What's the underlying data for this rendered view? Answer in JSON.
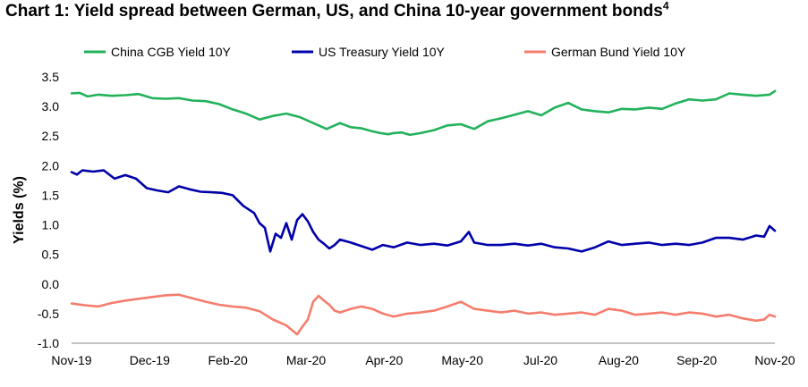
{
  "chart_data": {
    "type": "line",
    "title": "Chart 1: Yield spread between German, US, and China 10-year government bonds",
    "title_footnote": "4",
    "xlabel": "",
    "ylabel": "Yields (%)",
    "ylim": [
      -1.0,
      3.5
    ],
    "yticks": [
      "3.5",
      "3.0",
      "2.5",
      "2.0",
      "1.5",
      "1.0",
      "0.5",
      "0.0",
      "-0.5",
      "-1.0"
    ],
    "x_tick_labels": [
      "Nov-19",
      "Dec-19",
      "Feb-20",
      "Mar-20",
      "Apr-20",
      "May-20",
      "Jul-20",
      "Aug-20",
      "Sep-20",
      "Nov-20"
    ],
    "grid": false,
    "legend_position": "top",
    "series": [
      {
        "name": "China CGB Yield 10Y",
        "color": "#22b25a",
        "x": [
          0,
          3,
          6,
          10,
          15,
          20,
          25,
          30,
          35,
          40,
          45,
          50,
          55,
          60,
          65,
          70,
          75,
          80,
          85,
          90,
          95,
          100,
          104,
          108,
          112,
          115,
          118,
          120,
          123,
          126,
          130,
          135,
          140,
          145,
          150,
          155,
          160,
          165,
          170,
          175,
          180,
          185,
          190,
          195,
          200,
          205,
          210,
          215,
          220,
          225,
          230,
          235,
          240,
          245,
          250,
          255,
          260,
          262
        ],
        "values": [
          3.22,
          3.23,
          3.17,
          3.2,
          3.18,
          3.19,
          3.21,
          3.14,
          3.13,
          3.14,
          3.1,
          3.09,
          3.04,
          2.95,
          2.88,
          2.78,
          2.84,
          2.88,
          2.82,
          2.72,
          2.62,
          2.72,
          2.65,
          2.63,
          2.58,
          2.55,
          2.53,
          2.55,
          2.56,
          2.52,
          2.55,
          2.6,
          2.68,
          2.7,
          2.62,
          2.75,
          2.8,
          2.86,
          2.92,
          2.85,
          2.98,
          3.06,
          2.95,
          2.92,
          2.9,
          2.96,
          2.95,
          2.98,
          2.96,
          3.05,
          3.12,
          3.1,
          3.12,
          3.22,
          3.2,
          3.18,
          3.2,
          3.26
        ]
      },
      {
        "name": "US Treasury Yield 10Y",
        "color": "#0000aa",
        "x": [
          0,
          2,
          4,
          8,
          12,
          16,
          20,
          24,
          28,
          32,
          36,
          40,
          44,
          48,
          52,
          56,
          60,
          64,
          68,
          70,
          72,
          74,
          76,
          78,
          80,
          82,
          84,
          86,
          88,
          90,
          92,
          94,
          96,
          98,
          100,
          104,
          108,
          112,
          116,
          120,
          125,
          130,
          135,
          140,
          145,
          148,
          150,
          155,
          160,
          165,
          170,
          175,
          180,
          185,
          190,
          195,
          200,
          205,
          210,
          215,
          220,
          225,
          230,
          235,
          240,
          245,
          250,
          255,
          258,
          260,
          262
        ],
        "values": [
          1.89,
          1.85,
          1.92,
          1.9,
          1.92,
          1.78,
          1.84,
          1.78,
          1.62,
          1.58,
          1.55,
          1.65,
          1.6,
          1.56,
          1.55,
          1.54,
          1.5,
          1.32,
          1.2,
          1.03,
          0.95,
          0.55,
          0.85,
          0.78,
          1.03,
          0.75,
          1.08,
          1.18,
          1.06,
          0.88,
          0.75,
          0.68,
          0.6,
          0.66,
          0.75,
          0.7,
          0.64,
          0.58,
          0.66,
          0.62,
          0.7,
          0.66,
          0.68,
          0.65,
          0.72,
          0.88,
          0.7,
          0.66,
          0.66,
          0.68,
          0.65,
          0.68,
          0.62,
          0.6,
          0.55,
          0.62,
          0.72,
          0.66,
          0.68,
          0.7,
          0.66,
          0.68,
          0.66,
          0.7,
          0.78,
          0.78,
          0.75,
          0.82,
          0.8,
          0.98,
          0.9
        ]
      },
      {
        "name": "German Bund Yield 10Y",
        "color": "#f57d6e",
        "x": [
          0,
          5,
          10,
          15,
          20,
          25,
          30,
          35,
          40,
          45,
          50,
          55,
          60,
          65,
          70,
          75,
          80,
          84,
          86,
          88,
          90,
          92,
          94,
          96,
          98,
          100,
          104,
          108,
          112,
          116,
          120,
          125,
          130,
          135,
          140,
          145,
          150,
          155,
          160,
          165,
          170,
          175,
          180,
          185,
          190,
          195,
          200,
          205,
          210,
          215,
          220,
          225,
          230,
          235,
          240,
          245,
          250,
          255,
          258,
          260,
          262
        ],
        "values": [
          -0.33,
          -0.36,
          -0.38,
          -0.32,
          -0.28,
          -0.25,
          -0.22,
          -0.19,
          -0.18,
          -0.24,
          -0.3,
          -0.35,
          -0.38,
          -0.4,
          -0.46,
          -0.6,
          -0.7,
          -0.85,
          -0.72,
          -0.6,
          -0.3,
          -0.2,
          -0.28,
          -0.35,
          -0.45,
          -0.48,
          -0.42,
          -0.38,
          -0.42,
          -0.5,
          -0.55,
          -0.5,
          -0.48,
          -0.45,
          -0.38,
          -0.3,
          -0.42,
          -0.45,
          -0.48,
          -0.45,
          -0.5,
          -0.48,
          -0.52,
          -0.5,
          -0.48,
          -0.52,
          -0.42,
          -0.45,
          -0.52,
          -0.5,
          -0.48,
          -0.52,
          -0.48,
          -0.5,
          -0.55,
          -0.52,
          -0.58,
          -0.62,
          -0.6,
          -0.52,
          -0.55
        ]
      }
    ]
  }
}
